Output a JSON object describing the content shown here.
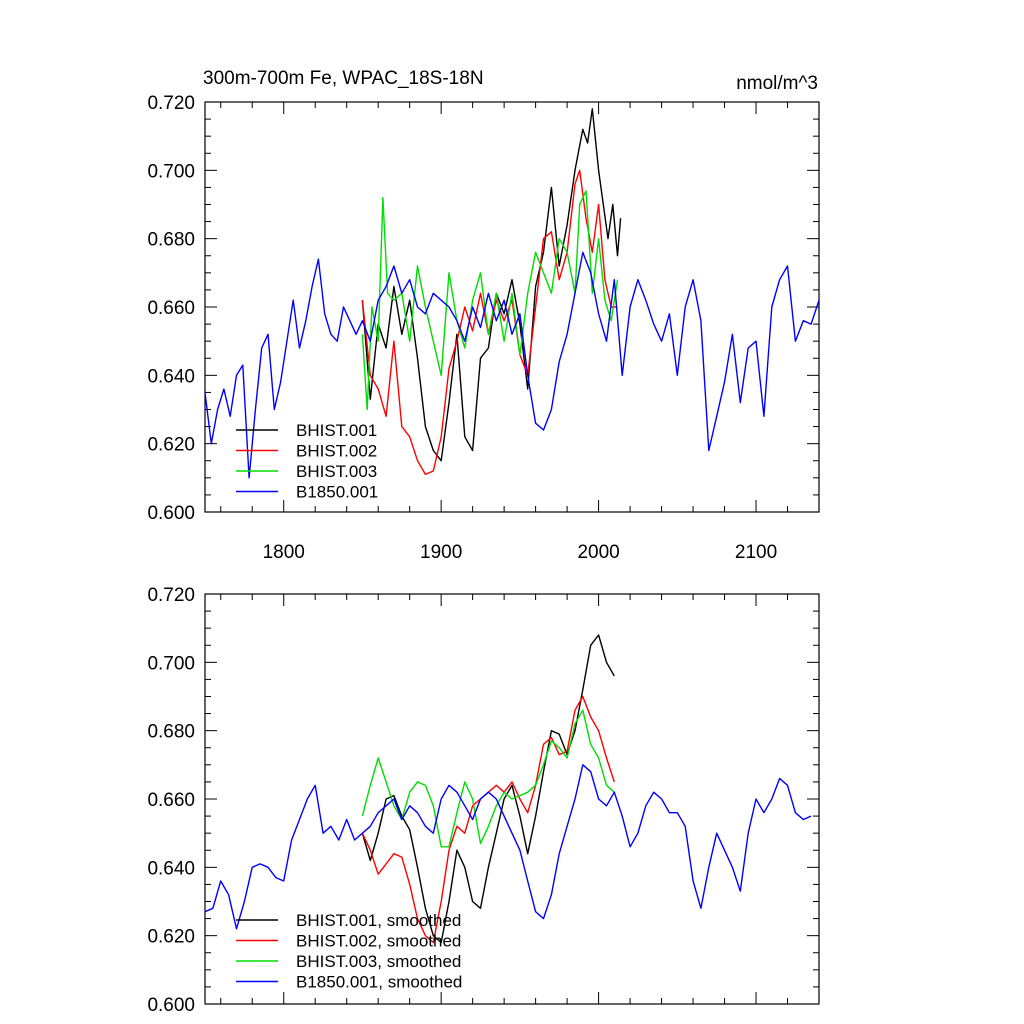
{
  "colors": {
    "black": "#000000",
    "red": "#ff0000",
    "green": "#00dd00",
    "blue": "#0000ff"
  },
  "chart_data": [
    {
      "type": "line",
      "title": "300m-700m Fe, WPAC_18S-18N",
      "units": "nmol/m^3",
      "xlabel": "",
      "ylabel": "",
      "xlim": [
        1750,
        2140
      ],
      "ylim": [
        0.6,
        0.72
      ],
      "xticks": [
        1800,
        1900,
        2000,
        2100
      ],
      "xtick_labels": [
        "1800",
        "1900",
        "2000",
        "2100"
      ],
      "yticks": [
        0.6,
        0.62,
        0.64,
        0.66,
        0.68,
        0.7,
        0.72
      ],
      "ytick_labels": [
        "0.600",
        "0.620",
        "0.640",
        "0.660",
        "0.680",
        "0.700",
        "0.720"
      ],
      "legend": [
        "BHIST.001",
        "BHIST.002",
        "BHIST.003",
        "B1850.001"
      ],
      "legend_position": "bottom-left",
      "series": [
        {
          "name": "BHIST.001",
          "color": "#000000",
          "x": [
            1850,
            1855,
            1860,
            1865,
            1870,
            1875,
            1880,
            1885,
            1890,
            1895,
            1900,
            1905,
            1910,
            1915,
            1920,
            1925,
            1930,
            1935,
            1940,
            1945,
            1950,
            1955,
            1960,
            1965,
            1970,
            1975,
            1980,
            1985,
            1990,
            1993,
            1996,
            2000,
            2003,
            2006,
            2009,
            2012,
            2014
          ],
          "y": [
            0.662,
            0.633,
            0.655,
            0.648,
            0.666,
            0.652,
            0.662,
            0.645,
            0.625,
            0.618,
            0.615,
            0.632,
            0.652,
            0.622,
            0.618,
            0.645,
            0.648,
            0.664,
            0.658,
            0.668,
            0.655,
            0.636,
            0.666,
            0.676,
            0.695,
            0.672,
            0.684,
            0.7,
            0.712,
            0.708,
            0.718,
            0.7,
            0.69,
            0.68,
            0.69,
            0.675,
            0.686
          ]
        },
        {
          "name": "BHIST.002",
          "color": "#ff0000",
          "x": [
            1850,
            1855,
            1860,
            1865,
            1870,
            1875,
            1880,
            1885,
            1890,
            1895,
            1900,
            1905,
            1910,
            1915,
            1920,
            1925,
            1930,
            1935,
            1940,
            1945,
            1950,
            1955,
            1960,
            1965,
            1970,
            1975,
            1980,
            1985,
            1988,
            1992,
            1996,
            2000,
            2004,
            2008,
            2012
          ],
          "y": [
            0.662,
            0.64,
            0.636,
            0.628,
            0.65,
            0.625,
            0.622,
            0.615,
            0.611,
            0.612,
            0.622,
            0.642,
            0.65,
            0.66,
            0.653,
            0.664,
            0.652,
            0.662,
            0.656,
            0.662,
            0.646,
            0.64,
            0.66,
            0.68,
            0.682,
            0.668,
            0.676,
            0.696,
            0.7,
            0.686,
            0.676,
            0.69,
            0.668,
            0.66,
            0.66
          ]
        },
        {
          "name": "BHIST.003",
          "color": "#00dd00",
          "x": [
            1850,
            1853,
            1856,
            1860,
            1863,
            1866,
            1870,
            1875,
            1880,
            1885,
            1890,
            1895,
            1900,
            1905,
            1910,
            1915,
            1920,
            1925,
            1930,
            1935,
            1940,
            1945,
            1950,
            1955,
            1960,
            1965,
            1970,
            1975,
            1980,
            1985,
            1988,
            1992,
            1996,
            2000,
            2004,
            2008,
            2012
          ],
          "y": [
            0.652,
            0.63,
            0.66,
            0.65,
            0.692,
            0.664,
            0.662,
            0.664,
            0.65,
            0.672,
            0.66,
            0.65,
            0.64,
            0.67,
            0.656,
            0.648,
            0.662,
            0.67,
            0.652,
            0.664,
            0.65,
            0.664,
            0.646,
            0.664,
            0.676,
            0.67,
            0.664,
            0.68,
            0.676,
            0.664,
            0.69,
            0.694,
            0.664,
            0.68,
            0.662,
            0.656,
            0.668
          ]
        },
        {
          "name": "B1850.001",
          "color": "#0000ff",
          "x": [
            1750,
            1754,
            1758,
            1762,
            1766,
            1770,
            1774,
            1778,
            1782,
            1786,
            1790,
            1794,
            1798,
            1802,
            1806,
            1810,
            1814,
            1818,
            1822,
            1826,
            1830,
            1834,
            1838,
            1842,
            1846,
            1850,
            1855,
            1860,
            1865,
            1870,
            1875,
            1880,
            1885,
            1890,
            1895,
            1900,
            1905,
            1910,
            1915,
            1920,
            1925,
            1930,
            1935,
            1940,
            1945,
            1950,
            1955,
            1960,
            1965,
            1970,
            1975,
            1980,
            1985,
            1990,
            1995,
            2000,
            2005,
            2010,
            2015,
            2020,
            2025,
            2030,
            2035,
            2040,
            2045,
            2050,
            2055,
            2060,
            2065,
            2070,
            2075,
            2080,
            2085,
            2090,
            2095,
            2100,
            2105,
            2110,
            2115,
            2120,
            2125,
            2130,
            2135,
            2140
          ],
          "y": [
            0.635,
            0.62,
            0.63,
            0.636,
            0.628,
            0.64,
            0.643,
            0.61,
            0.63,
            0.648,
            0.652,
            0.63,
            0.638,
            0.65,
            0.662,
            0.648,
            0.656,
            0.666,
            0.674,
            0.658,
            0.652,
            0.65,
            0.66,
            0.656,
            0.652,
            0.656,
            0.65,
            0.662,
            0.666,
            0.672,
            0.664,
            0.668,
            0.66,
            0.658,
            0.664,
            0.662,
            0.66,
            0.656,
            0.65,
            0.66,
            0.654,
            0.664,
            0.656,
            0.662,
            0.652,
            0.658,
            0.64,
            0.626,
            0.624,
            0.63,
            0.644,
            0.652,
            0.664,
            0.676,
            0.67,
            0.658,
            0.65,
            0.668,
            0.64,
            0.66,
            0.668,
            0.662,
            0.655,
            0.65,
            0.658,
            0.64,
            0.66,
            0.668,
            0.656,
            0.618,
            0.628,
            0.638,
            0.652,
            0.632,
            0.648,
            0.65,
            0.628,
            0.66,
            0.668,
            0.672,
            0.65,
            0.656,
            0.655,
            0.662
          ]
        }
      ]
    },
    {
      "type": "line",
      "title": "",
      "xlabel": "",
      "ylabel": "",
      "xlim": [
        1750,
        2140
      ],
      "ylim": [
        0.6,
        0.72
      ],
      "xticks": [
        1800,
        1900,
        2000,
        2100
      ],
      "yticks": [
        0.6,
        0.62,
        0.64,
        0.66,
        0.68,
        0.7,
        0.72
      ],
      "ytick_labels": [
        "0.600",
        "0.620",
        "0.640",
        "0.660",
        "0.680",
        "0.700",
        "0.720"
      ],
      "legend": [
        "BHIST.001, smoothed",
        "BHIST.002, smoothed",
        "BHIST.003, smoothed",
        "B1850.001, smoothed"
      ],
      "legend_position": "bottom-left",
      "series": [
        {
          "name": "BHIST.001, smoothed",
          "color": "#000000",
          "x": [
            1850,
            1855,
            1860,
            1865,
            1870,
            1875,
            1880,
            1885,
            1890,
            1895,
            1900,
            1905,
            1910,
            1915,
            1920,
            1925,
            1930,
            1935,
            1940,
            1945,
            1950,
            1955,
            1960,
            1965,
            1970,
            1975,
            1980,
            1985,
            1990,
            1995,
            2000,
            2005,
            2010
          ],
          "y": [
            0.65,
            0.642,
            0.65,
            0.66,
            0.661,
            0.655,
            0.651,
            0.64,
            0.628,
            0.62,
            0.618,
            0.63,
            0.645,
            0.64,
            0.63,
            0.628,
            0.64,
            0.65,
            0.66,
            0.664,
            0.655,
            0.644,
            0.655,
            0.668,
            0.68,
            0.679,
            0.673,
            0.68,
            0.692,
            0.705,
            0.708,
            0.7,
            0.696
          ]
        },
        {
          "name": "BHIST.002, smoothed",
          "color": "#ff0000",
          "x": [
            1850,
            1855,
            1860,
            1865,
            1870,
            1875,
            1880,
            1885,
            1890,
            1895,
            1900,
            1905,
            1910,
            1915,
            1920,
            1925,
            1930,
            1935,
            1940,
            1945,
            1950,
            1955,
            1960,
            1965,
            1970,
            1975,
            1980,
            1985,
            1990,
            1995,
            2000,
            2005,
            2010
          ],
          "y": [
            0.65,
            0.645,
            0.638,
            0.641,
            0.644,
            0.643,
            0.635,
            0.625,
            0.62,
            0.618,
            0.63,
            0.645,
            0.652,
            0.65,
            0.658,
            0.66,
            0.662,
            0.664,
            0.662,
            0.665,
            0.66,
            0.656,
            0.664,
            0.676,
            0.678,
            0.673,
            0.674,
            0.686,
            0.69,
            0.684,
            0.68,
            0.672,
            0.665
          ]
        },
        {
          "name": "BHIST.003, smoothed",
          "color": "#00dd00",
          "x": [
            1850,
            1855,
            1860,
            1865,
            1870,
            1875,
            1880,
            1885,
            1890,
            1895,
            1900,
            1905,
            1910,
            1915,
            1920,
            1925,
            1930,
            1935,
            1940,
            1945,
            1950,
            1955,
            1960,
            1965,
            1970,
            1975,
            1980,
            1985,
            1990,
            1995,
            2000,
            2005,
            2010
          ],
          "y": [
            0.655,
            0.664,
            0.672,
            0.665,
            0.658,
            0.654,
            0.662,
            0.665,
            0.664,
            0.658,
            0.646,
            0.646,
            0.656,
            0.665,
            0.66,
            0.647,
            0.652,
            0.658,
            0.662,
            0.66,
            0.661,
            0.662,
            0.664,
            0.67,
            0.677,
            0.675,
            0.672,
            0.682,
            0.686,
            0.676,
            0.672,
            0.664,
            0.662
          ]
        },
        {
          "name": "B1850.001, smoothed",
          "color": "#0000ff",
          "x": [
            1750,
            1755,
            1760,
            1765,
            1770,
            1775,
            1780,
            1785,
            1790,
            1795,
            1800,
            1805,
            1810,
            1815,
            1820,
            1825,
            1830,
            1835,
            1840,
            1845,
            1850,
            1855,
            1860,
            1865,
            1870,
            1875,
            1880,
            1885,
            1890,
            1895,
            1900,
            1905,
            1910,
            1915,
            1920,
            1925,
            1930,
            1935,
            1940,
            1945,
            1950,
            1955,
            1960,
            1965,
            1970,
            1975,
            1980,
            1985,
            1990,
            1995,
            2000,
            2005,
            2010,
            2015,
            2020,
            2025,
            2030,
            2035,
            2040,
            2045,
            2050,
            2055,
            2060,
            2065,
            2070,
            2075,
            2080,
            2085,
            2090,
            2095,
            2100,
            2105,
            2110,
            2115,
            2120,
            2125,
            2130,
            2135
          ],
          "y": [
            0.627,
            0.628,
            0.636,
            0.632,
            0.622,
            0.63,
            0.64,
            0.641,
            0.64,
            0.637,
            0.636,
            0.648,
            0.654,
            0.66,
            0.664,
            0.65,
            0.652,
            0.648,
            0.654,
            0.648,
            0.65,
            0.652,
            0.656,
            0.658,
            0.66,
            0.654,
            0.658,
            0.656,
            0.652,
            0.65,
            0.66,
            0.664,
            0.662,
            0.658,
            0.654,
            0.66,
            0.662,
            0.66,
            0.655,
            0.65,
            0.645,
            0.636,
            0.627,
            0.625,
            0.632,
            0.644,
            0.652,
            0.66,
            0.67,
            0.668,
            0.66,
            0.658,
            0.662,
            0.655,
            0.646,
            0.65,
            0.658,
            0.662,
            0.66,
            0.656,
            0.656,
            0.652,
            0.636,
            0.628,
            0.64,
            0.65,
            0.645,
            0.64,
            0.633,
            0.65,
            0.66,
            0.656,
            0.66,
            0.666,
            0.664,
            0.656,
            0.654,
            0.655
          ]
        }
      ]
    }
  ]
}
